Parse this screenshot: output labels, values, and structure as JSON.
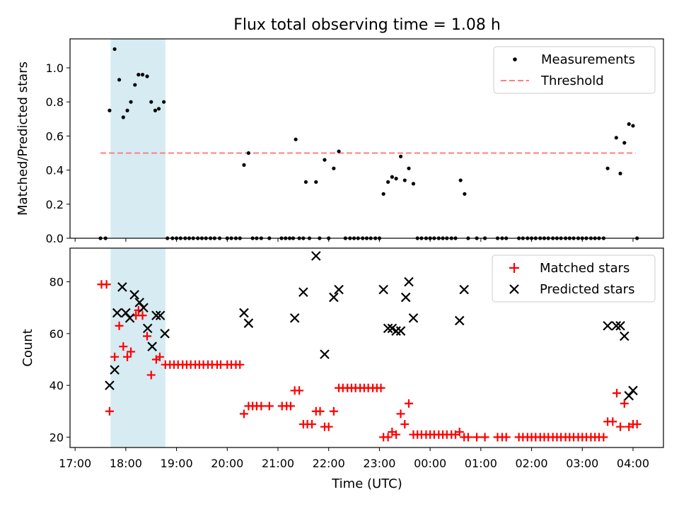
{
  "title": "Flux total observing time = 1.08 h",
  "x_axis": {
    "label": "Time (UTC)",
    "range_hours": [
      16.9,
      28.6
    ],
    "ticks": [
      {
        "v": 17,
        "label": "17:00"
      },
      {
        "v": 18,
        "label": "18:00"
      },
      {
        "v": 19,
        "label": "19:00"
      },
      {
        "v": 20,
        "label": "20:00"
      },
      {
        "v": 21,
        "label": "21:00"
      },
      {
        "v": 22,
        "label": "22:00"
      },
      {
        "v": 23,
        "label": "23:00"
      },
      {
        "v": 24,
        "label": "00:00"
      },
      {
        "v": 25,
        "label": "01:00"
      },
      {
        "v": 26,
        "label": "02:00"
      },
      {
        "v": 27,
        "label": "03:00"
      },
      {
        "v": 28,
        "label": "04:00"
      }
    ]
  },
  "highlight_span_hours": [
    17.7,
    18.78
  ],
  "colors": {
    "threshold": "#ff7f7f",
    "span": "#add8e6",
    "matched": "#ff0000",
    "predicted": "#000000",
    "measurement": "#000000"
  },
  "chart_data": [
    {
      "type": "scatter",
      "title": "Flux total observing time = 1.08 h",
      "ylabel": "Matched/Predicted stars",
      "ylim": [
        0,
        1.17
      ],
      "yticks": [
        {
          "v": 0,
          "label": "0.0"
        },
        {
          "v": 0.2,
          "label": "0.2"
        },
        {
          "v": 0.4,
          "label": "0.4"
        },
        {
          "v": 0.6,
          "label": "0.6"
        },
        {
          "v": 0.8,
          "label": "0.8"
        },
        {
          "v": 1.0,
          "label": "1.0"
        }
      ],
      "legend": [
        "Measurements",
        "Threshold"
      ],
      "legend_position": "top-right",
      "threshold": {
        "value": 0.5,
        "x_range": [
          17.5,
          28.05
        ]
      },
      "measurements": [
        [
          17.5,
          0
        ],
        [
          17.6,
          0
        ],
        [
          17.68,
          0.75
        ],
        [
          17.78,
          1.11
        ],
        [
          17.87,
          0.93
        ],
        [
          17.95,
          0.71
        ],
        [
          18.03,
          0.75
        ],
        [
          18.1,
          0.8
        ],
        [
          18.18,
          0.9
        ],
        [
          18.25,
          0.96
        ],
        [
          18.33,
          0.96
        ],
        [
          18.42,
          0.95
        ],
        [
          18.5,
          0.8
        ],
        [
          18.58,
          0.75
        ],
        [
          18.65,
          0.76
        ],
        [
          18.75,
          0.8
        ],
        [
          18.82,
          0
        ],
        [
          18.92,
          0
        ],
        [
          19.0,
          0
        ],
        [
          19.08,
          0
        ],
        [
          19.17,
          0
        ],
        [
          19.25,
          0
        ],
        [
          19.33,
          0
        ],
        [
          19.42,
          0
        ],
        [
          19.5,
          0
        ],
        [
          19.58,
          0
        ],
        [
          19.67,
          0
        ],
        [
          19.75,
          0
        ],
        [
          19.85,
          0
        ],
        [
          20.0,
          0
        ],
        [
          20.08,
          0
        ],
        [
          20.17,
          0
        ],
        [
          20.25,
          0
        ],
        [
          20.33,
          0.43
        ],
        [
          20.42,
          0.5
        ],
        [
          20.5,
          0
        ],
        [
          20.58,
          0
        ],
        [
          20.67,
          0
        ],
        [
          20.83,
          0
        ],
        [
          21.07,
          0
        ],
        [
          21.15,
          0
        ],
        [
          21.23,
          0
        ],
        [
          21.3,
          0
        ],
        [
          21.35,
          0.58
        ],
        [
          21.42,
          0
        ],
        [
          21.5,
          0
        ],
        [
          21.55,
          0.33
        ],
        [
          21.62,
          0
        ],
        [
          21.75,
          0.33
        ],
        [
          21.82,
          0
        ],
        [
          21.92,
          0.46
        ],
        [
          22.0,
          0
        ],
        [
          22.1,
          0.41
        ],
        [
          22.2,
          0.51
        ],
        [
          22.33,
          0
        ],
        [
          22.42,
          0
        ],
        [
          22.5,
          0
        ],
        [
          22.58,
          0
        ],
        [
          22.67,
          0
        ],
        [
          22.75,
          0
        ],
        [
          22.83,
          0
        ],
        [
          22.92,
          0
        ],
        [
          23.0,
          0
        ],
        [
          23.08,
          0.26
        ],
        [
          23.17,
          0.33
        ],
        [
          23.25,
          0.36
        ],
        [
          23.33,
          0.35
        ],
        [
          23.42,
          0.48
        ],
        [
          23.5,
          0.34
        ],
        [
          23.58,
          0.41
        ],
        [
          23.67,
          0.32
        ],
        [
          23.75,
          0
        ],
        [
          23.83,
          0
        ],
        [
          23.92,
          0
        ],
        [
          24.0,
          0
        ],
        [
          24.08,
          0
        ],
        [
          24.17,
          0
        ],
        [
          24.25,
          0
        ],
        [
          24.33,
          0
        ],
        [
          24.42,
          0
        ],
        [
          24.5,
          0
        ],
        [
          24.6,
          0.34
        ],
        [
          24.68,
          0.26
        ],
        [
          24.75,
          0
        ],
        [
          24.92,
          0
        ],
        [
          25.08,
          0
        ],
        [
          25.33,
          0
        ],
        [
          25.42,
          0
        ],
        [
          25.5,
          0
        ],
        [
          25.75,
          0
        ],
        [
          25.83,
          0
        ],
        [
          25.92,
          0
        ],
        [
          26.0,
          0
        ],
        [
          26.08,
          0
        ],
        [
          26.17,
          0
        ],
        [
          26.25,
          0
        ],
        [
          26.33,
          0
        ],
        [
          26.42,
          0
        ],
        [
          26.5,
          0
        ],
        [
          26.58,
          0
        ],
        [
          26.67,
          0
        ],
        [
          26.75,
          0
        ],
        [
          26.83,
          0
        ],
        [
          26.92,
          0
        ],
        [
          27.0,
          0
        ],
        [
          27.08,
          0
        ],
        [
          27.17,
          0
        ],
        [
          27.25,
          0
        ],
        [
          27.33,
          0
        ],
        [
          27.42,
          0
        ],
        [
          27.5,
          0.41
        ],
        [
          27.67,
          0.59
        ],
        [
          27.75,
          0.38
        ],
        [
          27.83,
          0.56
        ],
        [
          27.92,
          0.67
        ],
        [
          28.0,
          0.66
        ],
        [
          28.08,
          0
        ]
      ]
    },
    {
      "type": "scatter",
      "ylabel": "Count",
      "xlabel": "Time (UTC)",
      "ylim": [
        16,
        93
      ],
      "yticks": [
        {
          "v": 20,
          "label": "20"
        },
        {
          "v": 40,
          "label": "40"
        },
        {
          "v": 60,
          "label": "60"
        },
        {
          "v": 80,
          "label": "80"
        }
      ],
      "legend": [
        "Matched stars",
        "Predicted stars"
      ],
      "legend_position": "top-right",
      "matched": [
        [
          17.52,
          79
        ],
        [
          17.62,
          79
        ],
        [
          17.68,
          30
        ],
        [
          17.78,
          51
        ],
        [
          17.87,
          63
        ],
        [
          17.95,
          55
        ],
        [
          18.03,
          51
        ],
        [
          18.1,
          53
        ],
        [
          18.2,
          67
        ],
        [
          18.25,
          69
        ],
        [
          18.33,
          67
        ],
        [
          18.42,
          59
        ],
        [
          18.5,
          44
        ],
        [
          18.6,
          50
        ],
        [
          18.67,
          51
        ],
        [
          18.78,
          48
        ],
        [
          18.87,
          48
        ],
        [
          18.95,
          48
        ],
        [
          19.03,
          48
        ],
        [
          19.12,
          48
        ],
        [
          19.2,
          48
        ],
        [
          19.28,
          48
        ],
        [
          19.37,
          48
        ],
        [
          19.45,
          48
        ],
        [
          19.53,
          48
        ],
        [
          19.62,
          48
        ],
        [
          19.7,
          48
        ],
        [
          19.8,
          48
        ],
        [
          19.87,
          48
        ],
        [
          20.0,
          48
        ],
        [
          20.08,
          48
        ],
        [
          20.17,
          48
        ],
        [
          20.25,
          48
        ],
        [
          20.33,
          29
        ],
        [
          20.42,
          32
        ],
        [
          20.5,
          32
        ],
        [
          20.58,
          32
        ],
        [
          20.67,
          32
        ],
        [
          20.83,
          32
        ],
        [
          21.08,
          32
        ],
        [
          21.17,
          32
        ],
        [
          21.25,
          32
        ],
        [
          21.33,
          38
        ],
        [
          21.42,
          38
        ],
        [
          21.5,
          25
        ],
        [
          21.58,
          25
        ],
        [
          21.67,
          25
        ],
        [
          21.75,
          30
        ],
        [
          21.83,
          30
        ],
        [
          21.92,
          24
        ],
        [
          22.0,
          24
        ],
        [
          22.1,
          30
        ],
        [
          22.2,
          39
        ],
        [
          22.28,
          39
        ],
        [
          22.37,
          39
        ],
        [
          22.45,
          39
        ],
        [
          22.53,
          39
        ],
        [
          22.62,
          39
        ],
        [
          22.7,
          39
        ],
        [
          22.78,
          39
        ],
        [
          22.87,
          39
        ],
        [
          22.95,
          39
        ],
        [
          23.03,
          39
        ],
        [
          23.08,
          20
        ],
        [
          23.17,
          20
        ],
        [
          23.25,
          22
        ],
        [
          23.33,
          21
        ],
        [
          23.42,
          29
        ],
        [
          23.5,
          25
        ],
        [
          23.58,
          33
        ],
        [
          23.67,
          21
        ],
        [
          23.75,
          21
        ],
        [
          23.83,
          21
        ],
        [
          23.92,
          21
        ],
        [
          24.0,
          21
        ],
        [
          24.08,
          21
        ],
        [
          24.17,
          21
        ],
        [
          24.25,
          21
        ],
        [
          24.33,
          21
        ],
        [
          24.42,
          21
        ],
        [
          24.5,
          21
        ],
        [
          24.58,
          22
        ],
        [
          24.67,
          20
        ],
        [
          24.75,
          20
        ],
        [
          24.92,
          20
        ],
        [
          25.08,
          20
        ],
        [
          25.33,
          20
        ],
        [
          25.42,
          20
        ],
        [
          25.5,
          20
        ],
        [
          25.75,
          20
        ],
        [
          25.83,
          20
        ],
        [
          25.92,
          20
        ],
        [
          26.0,
          20
        ],
        [
          26.08,
          20
        ],
        [
          26.17,
          20
        ],
        [
          26.25,
          20
        ],
        [
          26.33,
          20
        ],
        [
          26.42,
          20
        ],
        [
          26.5,
          20
        ],
        [
          26.58,
          20
        ],
        [
          26.67,
          20
        ],
        [
          26.75,
          20
        ],
        [
          26.83,
          20
        ],
        [
          26.92,
          20
        ],
        [
          27.0,
          20
        ],
        [
          27.08,
          20
        ],
        [
          27.17,
          20
        ],
        [
          27.25,
          20
        ],
        [
          27.33,
          20
        ],
        [
          27.42,
          20
        ],
        [
          27.5,
          26
        ],
        [
          27.6,
          26
        ],
        [
          27.68,
          37
        ],
        [
          27.75,
          24
        ],
        [
          27.83,
          33
        ],
        [
          27.92,
          24
        ],
        [
          28.0,
          25
        ],
        [
          28.08,
          25
        ]
      ],
      "predicted": [
        [
          17.68,
          40
        ],
        [
          17.78,
          46
        ],
        [
          17.83,
          68
        ],
        [
          17.93,
          78
        ],
        [
          18.0,
          68
        ],
        [
          18.08,
          66
        ],
        [
          18.17,
          75
        ],
        [
          18.27,
          72
        ],
        [
          18.35,
          70
        ],
        [
          18.43,
          62
        ],
        [
          18.52,
          55
        ],
        [
          18.6,
          67
        ],
        [
          18.68,
          67
        ],
        [
          18.77,
          60
        ],
        [
          20.33,
          68
        ],
        [
          20.42,
          64
        ],
        [
          21.33,
          66
        ],
        [
          21.5,
          76
        ],
        [
          21.75,
          90
        ],
        [
          21.92,
          52
        ],
        [
          22.1,
          74
        ],
        [
          22.2,
          77
        ],
        [
          23.08,
          77
        ],
        [
          23.17,
          62
        ],
        [
          23.25,
          62
        ],
        [
          23.33,
          61
        ],
        [
          23.42,
          61
        ],
        [
          23.52,
          74
        ],
        [
          23.58,
          80
        ],
        [
          23.67,
          66
        ],
        [
          24.58,
          65
        ],
        [
          24.67,
          77
        ],
        [
          27.5,
          63
        ],
        [
          27.67,
          63
        ],
        [
          27.75,
          63
        ],
        [
          27.83,
          59
        ],
        [
          27.92,
          36
        ],
        [
          28.0,
          38
        ]
      ]
    }
  ]
}
